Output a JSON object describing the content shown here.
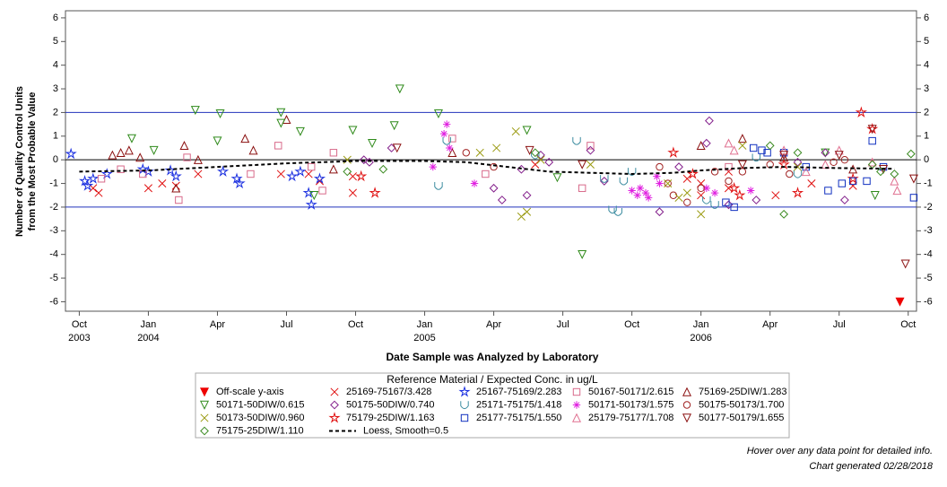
{
  "chart_data": {
    "type": "scatter",
    "y_label": [
      "Number of Quality Control Units",
      "from the Most Probable Value"
    ],
    "x_label": "Date Sample was Analyzed by Laboratory",
    "legend_title": "Reference Material / Expected Conc. in ug/L",
    "notes": [
      "Hover over any data point for detailed info.",
      "Chart generated 02/28/2018"
    ],
    "xlim": [
      2003.7,
      2006.78
    ],
    "ylim": [
      -6.4,
      6.3
    ],
    "xticks": [
      {
        "value": 2003.75,
        "label": "Oct 2003"
      },
      {
        "value": 2004.0,
        "label": "Jan 2004"
      },
      {
        "value": 2004.25,
        "label": "Apr"
      },
      {
        "value": 2004.5,
        "label": "Jul"
      },
      {
        "value": 2004.75,
        "label": "Oct"
      },
      {
        "value": 2005.0,
        "label": "Jan 2005"
      },
      {
        "value": 2005.25,
        "label": "Apr"
      },
      {
        "value": 2005.5,
        "label": "Jul"
      },
      {
        "value": 2005.75,
        "label": "Oct"
      },
      {
        "value": 2006.0,
        "label": "Jan 2006"
      },
      {
        "value": 2006.25,
        "label": "Apr"
      },
      {
        "value": 2006.5,
        "label": "Jul"
      },
      {
        "value": 2006.75,
        "label": "Oct"
      }
    ],
    "yticks": [
      -6,
      -5,
      -4,
      -3,
      -2,
      -1,
      0,
      1,
      2,
      3,
      4,
      5,
      6
    ],
    "ref_lines": [
      {
        "value": -2,
        "color": "#2233bb"
      },
      {
        "value": 0,
        "color": "#000000"
      },
      {
        "value": 2,
        "color": "#2233bb"
      }
    ],
    "series": [
      {
        "name": "Off-scale y-axis",
        "marker": "triangle-down-filled",
        "color": "#ee0000",
        "x": [
          2006.72
        ],
        "values": [
          -6
        ]
      },
      {
        "name": "25169-75167/3.428",
        "marker": "x",
        "color": "#e01010",
        "x": [
          2003.8,
          2003.82,
          2004.0,
          2004.05,
          2004.1,
          2004.18,
          2004.48,
          2004.58,
          2004.62,
          2004.74,
          2004.74,
          2005.4,
          2005.95,
          2006.0,
          2006.0,
          2006.1,
          2006.1,
          2006.27,
          2006.4,
          2006.55
        ],
        "values": [
          -1.2,
          -1.4,
          -1.2,
          -1.0,
          -1.1,
          -0.6,
          -0.6,
          -0.6,
          -0.9,
          -1.4,
          -0.7,
          -0.2,
          -0.8,
          -1.0,
          -1.5,
          -1.2,
          -0.5,
          -1.5,
          -1.0,
          -1.1
        ]
      },
      {
        "name": "25167-75169/2.283",
        "marker": "star",
        "color": "#1a2fe0",
        "x": [
          2003.72,
          2003.77,
          2003.78,
          2003.8,
          2003.85,
          2003.98,
          2004.0,
          2004.08,
          2004.1,
          2004.27,
          2004.32,
          2004.33,
          2004.52,
          2004.55,
          2004.58,
          2004.59,
          2004.62
        ],
        "values": [
          0.25,
          -0.9,
          -1.1,
          -0.8,
          -0.6,
          -0.4,
          -0.5,
          -0.45,
          -0.7,
          -0.5,
          -0.8,
          -1.0,
          -0.7,
          -0.5,
          -1.4,
          -1.9,
          -0.8
        ]
      },
      {
        "name": "50167-50171/2.615",
        "marker": "square",
        "color": "#d86a8a",
        "x": [
          2003.83,
          2003.9,
          2003.98,
          2004.11,
          2004.14,
          2004.37,
          2004.47,
          2004.59,
          2004.63,
          2004.67,
          2005.1,
          2005.22,
          2005.57,
          2005.6,
          2006.1
        ],
        "values": [
          -0.8,
          -0.4,
          -0.6,
          -1.7,
          0.1,
          -0.6,
          0.6,
          -0.3,
          -1.3,
          0.3,
          0.9,
          -0.6,
          -1.2,
          0.6,
          -0.3
        ]
      },
      {
        "name": "75169-25DIW/1.283",
        "marker": "triangle",
        "color": "#8b1010",
        "x": [
          2003.87,
          2003.9,
          2003.93,
          2003.97,
          2004.1,
          2004.13,
          2004.18,
          2004.35,
          2004.38,
          2004.5,
          2004.67,
          2005.1,
          2006.0,
          2006.15,
          2006.3,
          2006.55
        ],
        "values": [
          0.2,
          0.3,
          0.4,
          0.1,
          -1.2,
          0.6,
          0.0,
          0.9,
          0.4,
          1.7,
          -0.4,
          0.3,
          0.6,
          0.9,
          0.1,
          -0.4
        ]
      },
      {
        "name": "50171-50DIW/0.615",
        "marker": "triangle-down",
        "color": "#2f8a1a",
        "x": [
          2003.94,
          2004.17,
          2004.26,
          2004.25,
          2004.48,
          2004.48,
          2004.55,
          2004.74,
          2004.81,
          2004.89,
          2004.91,
          2005.05,
          2005.37,
          2005.57,
          2005.48,
          2004.02,
          2004.6,
          2006.45,
          2006.63
        ],
        "values": [
          0.9,
          2.1,
          1.95,
          0.8,
          2.0,
          1.55,
          1.2,
          1.25,
          0.7,
          1.45,
          3.0,
          1.95,
          1.25,
          -4.0,
          -0.75,
          0.4,
          -1.5,
          0.3,
          -1.5
        ]
      },
      {
        "name": "50175-50DIW/0.740",
        "marker": "diamond",
        "color": "#84208c",
        "x": [
          2004.78,
          2004.8,
          2004.88,
          2005.25,
          2005.28,
          2005.37,
          2005.35,
          2005.42,
          2005.45,
          2005.6,
          2005.65,
          2005.85,
          2005.92,
          2006.02,
          2006.03,
          2006.1,
          2006.2,
          2006.35,
          2006.45,
          2006.52
        ],
        "values": [
          0.0,
          -0.1,
          0.5,
          -1.2,
          -1.7,
          -1.5,
          -0.4,
          0.2,
          -0.1,
          0.4,
          -0.9,
          -2.2,
          -0.3,
          0.7,
          1.65,
          -1.9,
          -1.7,
          -0.1,
          0.3,
          -1.7
        ]
      },
      {
        "name": "25171-75175/1.418",
        "marker": "cup",
        "color": "#3c8ca0",
        "x": [
          2005.05,
          2005.08,
          2005.4,
          2005.55,
          2005.65,
          2005.68,
          2005.7,
          2005.72,
          2005.75,
          2006.02,
          2006.05,
          2006.2,
          2006.35
        ],
        "values": [
          -1.1,
          0.8,
          0.2,
          0.8,
          -0.8,
          -2.1,
          -2.2,
          -0.9,
          -0.5,
          -1.7,
          -1.9,
          0.1,
          -0.6
        ]
      },
      {
        "name": "50171-50173/1.575",
        "marker": "asterisk",
        "color": "#e020e0",
        "x": [
          2005.07,
          2005.08,
          2005.09,
          2005.03,
          2005.18,
          2005.75,
          2005.77,
          2005.78,
          2005.8,
          2005.81,
          2005.84,
          2005.85,
          2006.02,
          2006.05,
          2006.18
        ],
        "values": [
          1.1,
          1.5,
          0.5,
          -0.3,
          -1.0,
          -1.3,
          -1.5,
          -1.2,
          -1.4,
          -1.6,
          -0.7,
          -1.0,
          -1.2,
          -1.4,
          -1.3
        ]
      },
      {
        "name": "50175-50173/1.700",
        "marker": "circle",
        "color": "#a02020",
        "x": [
          2005.15,
          2005.25,
          2005.85,
          2005.88,
          2005.9,
          2005.95,
          2006.0,
          2006.05,
          2006.1,
          2006.15,
          2006.25,
          2006.32,
          2006.48,
          2006.52
        ],
        "values": [
          0.3,
          -0.3,
          -0.3,
          -1.0,
          -1.5,
          -1.8,
          -1.2,
          -0.5,
          -0.9,
          -0.5,
          -0.2,
          -0.6,
          -0.1,
          0.0
        ]
      },
      {
        "name": "50173-50DIW/0.960",
        "marker": "x",
        "color": "#9a9a10",
        "x": [
          2004.72,
          2005.2,
          2005.26,
          2005.33,
          2005.35,
          2005.37,
          2005.42,
          2005.6,
          2005.88,
          2005.92,
          2005.95,
          2006.0,
          2006.15,
          2006.35
        ],
        "values": [
          0.0,
          0.3,
          0.5,
          1.2,
          -2.4,
          -2.2,
          0.0,
          -0.2,
          -1.0,
          -1.6,
          -1.4,
          -2.3,
          0.6,
          -0.3
        ]
      },
      {
        "name": "75179-25DIW/1.163",
        "marker": "star",
        "color": "#e01010",
        "x": [
          2004.77,
          2004.82,
          2005.9,
          2005.97,
          2006.12,
          2006.14,
          2006.3,
          2006.35,
          2006.55,
          2006.58,
          2006.62
        ],
        "values": [
          -0.7,
          -1.4,
          0.3,
          -0.6,
          -1.2,
          -1.5,
          -0.2,
          -1.4,
          -0.8,
          2.0,
          1.3
        ]
      },
      {
        "name": "25177-75175/1.550",
        "marker": "square",
        "color": "#1030c0",
        "x": [
          2006.09,
          2006.12,
          2006.19,
          2006.22,
          2006.24,
          2006.3,
          2006.38,
          2006.46,
          2006.51,
          2006.55,
          2006.6,
          2006.62,
          2006.66,
          2006.77
        ],
        "values": [
          -1.8,
          -2.0,
          0.5,
          0.4,
          0.3,
          0.3,
          -0.3,
          -1.3,
          -1.0,
          -0.9,
          -0.9,
          0.8,
          -0.3,
          -1.6
        ]
      },
      {
        "name": "25179-75177/1.708",
        "marker": "triangle",
        "color": "#e07090",
        "x": [
          2006.1,
          2006.12,
          2006.3,
          2006.38,
          2006.45,
          2006.5,
          2006.62,
          2006.7,
          2006.71
        ],
        "values": [
          0.7,
          0.4,
          0.4,
          -0.5,
          -0.2,
          0.4,
          -0.1,
          -0.9,
          -1.3
        ]
      },
      {
        "name": "50177-50179/1.655",
        "marker": "triangle-down",
        "color": "#8b1010",
        "x": [
          2004.9,
          2005.38,
          2005.57,
          2006.15,
          2006.3,
          2006.5,
          2006.62,
          2006.66,
          2006.74,
          2006.77
        ],
        "values": [
          0.5,
          0.4,
          -0.2,
          -0.2,
          0.2,
          0.2,
          1.3,
          -0.4,
          -4.4,
          -0.8
        ]
      },
      {
        "name": "75175-25DIW/1.110",
        "marker": "diamond",
        "color": "#3a8a20",
        "x": [
          2004.72,
          2004.85,
          2005.4,
          2006.25,
          2006.3,
          2006.35,
          2006.62,
          2006.65,
          2006.7,
          2006.76
        ],
        "values": [
          -0.5,
          -0.4,
          0.3,
          0.6,
          -2.3,
          0.3,
          -0.2,
          -0.5,
          -0.6,
          0.25
        ]
      },
      {
        "name": "Loess, Smooth=0.5",
        "marker": "line",
        "color": "#000000",
        "x": [
          2003.75,
          2004.0,
          2004.25,
          2004.5,
          2004.75,
          2005.0,
          2005.15,
          2005.3,
          2005.45,
          2005.6,
          2005.75,
          2005.9,
          2006.0,
          2006.15,
          2006.3,
          2006.5,
          2006.7
        ],
        "values": [
          -0.5,
          -0.45,
          -0.3,
          -0.15,
          -0.05,
          -0.05,
          -0.1,
          -0.3,
          -0.5,
          -0.55,
          -0.6,
          -0.55,
          -0.45,
          -0.35,
          -0.3,
          -0.35,
          -0.38
        ]
      }
    ]
  }
}
